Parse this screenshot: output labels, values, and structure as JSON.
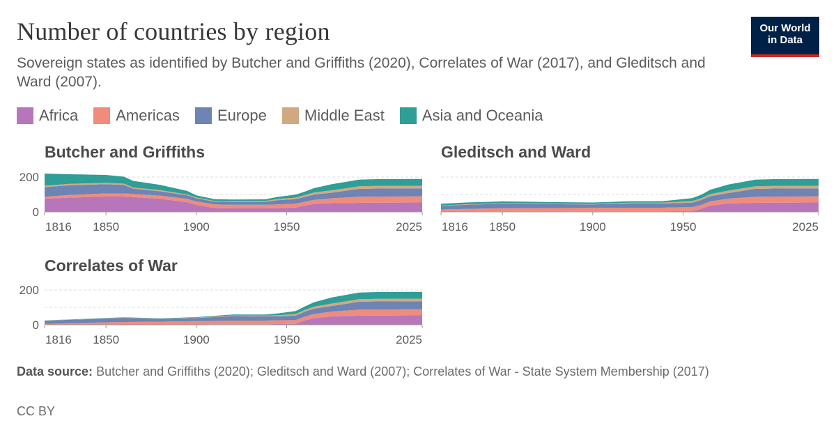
{
  "header": {
    "title": "Number of countries by region",
    "subtitle": "Sovereign states as identified by Butcher and Griffiths (2020), Correlates of War (2017), and Gleditsch and Ward (2007).",
    "logo_line1": "Our World",
    "logo_line2": "in Data"
  },
  "legend": [
    {
      "name": "Africa",
      "color": "#b676b9"
    },
    {
      "name": "Americas",
      "color": "#f08c7c"
    },
    {
      "name": "Europe",
      "color": "#6d84b4"
    },
    {
      "name": "Middle East",
      "color": "#cfa982"
    },
    {
      "name": "Asia and Oceania",
      "color": "#2f9e96"
    }
  ],
  "footer": {
    "source_label": "Data source:",
    "source_text": "Butcher and Griffiths (2020); Gleditsch and Ward (2007); Correlates of War - State System Membership (2017)",
    "license": "CC BY"
  },
  "chart_data": [
    {
      "type": "area",
      "title": "Butcher and Griffiths",
      "xlim": [
        1816,
        2025
      ],
      "ylim": [
        0,
        200
      ],
      "x_ticks": [
        "1816",
        "1850",
        "1900",
        "1950",
        "2025"
      ],
      "y_ticks": [
        "0",
        "200"
      ],
      "grid": true,
      "x": [
        1816,
        1830,
        1850,
        1860,
        1865,
        1880,
        1895,
        1900,
        1910,
        1920,
        1938,
        1945,
        1955,
        1960,
        1965,
        1975,
        1990,
        2000,
        2025
      ],
      "series": [
        {
          "name": "Africa",
          "values": [
            75,
            82,
            88,
            88,
            85,
            75,
            55,
            40,
            22,
            20,
            20,
            21,
            25,
            36,
            45,
            50,
            52,
            53,
            54
          ]
        },
        {
          "name": "Americas",
          "values": [
            12,
            15,
            18,
            18,
            18,
            18,
            20,
            20,
            21,
            21,
            21,
            22,
            22,
            22,
            24,
            28,
            35,
            35,
            35
          ]
        },
        {
          "name": "Europe",
          "values": [
            55,
            56,
            53,
            48,
            30,
            25,
            20,
            18,
            16,
            16,
            16,
            24,
            26,
            28,
            30,
            32,
            45,
            46,
            46
          ]
        },
        {
          "name": "Middle East",
          "values": [
            8,
            8,
            8,
            8,
            7,
            7,
            5,
            5,
            4,
            4,
            5,
            7,
            9,
            10,
            12,
            14,
            15,
            15,
            15
          ]
        },
        {
          "name": "Asia and Oceania",
          "values": [
            70,
            55,
            45,
            40,
            38,
            30,
            20,
            12,
            10,
            10,
            10,
            12,
            17,
            20,
            25,
            35,
            38,
            39,
            39
          ]
        }
      ]
    },
    {
      "type": "area",
      "title": "Gleditsch and Ward",
      "xlim": [
        1816,
        2025
      ],
      "ylim": [
        0,
        200
      ],
      "x_ticks": [
        "1816",
        "1850",
        "1900",
        "1950",
        "2025"
      ],
      "y_ticks": [],
      "grid": true,
      "x": [
        1816,
        1830,
        1850,
        1860,
        1880,
        1900,
        1920,
        1938,
        1945,
        1955,
        1960,
        1965,
        1975,
        1990,
        2000,
        2025
      ],
      "series": [
        {
          "name": "Africa",
          "values": [
            2,
            2,
            3,
            3,
            3,
            3,
            3,
            3,
            4,
            5,
            18,
            36,
            48,
            52,
            53,
            54
          ]
        },
        {
          "name": "Americas",
          "values": [
            12,
            15,
            18,
            18,
            19,
            20,
            21,
            21,
            22,
            22,
            22,
            24,
            28,
            35,
            35,
            35
          ]
        },
        {
          "name": "Europe",
          "values": [
            20,
            24,
            26,
            26,
            22,
            20,
            24,
            24,
            24,
            26,
            28,
            30,
            32,
            45,
            46,
            46
          ]
        },
        {
          "name": "Middle East",
          "values": [
            3,
            3,
            3,
            3,
            3,
            3,
            5,
            5,
            7,
            9,
            10,
            12,
            14,
            15,
            15,
            15
          ]
        },
        {
          "name": "Asia and Oceania",
          "values": [
            10,
            10,
            10,
            9,
            9,
            8,
            8,
            8,
            11,
            17,
            20,
            25,
            35,
            38,
            39,
            39
          ]
        }
      ]
    },
    {
      "type": "area",
      "title": "Correlates of War",
      "xlim": [
        1816,
        2025
      ],
      "ylim": [
        0,
        200
      ],
      "x_ticks": [
        "1816",
        "1850",
        "1900",
        "1950",
        "2025"
      ],
      "y_ticks": [
        "0",
        "200"
      ],
      "grid": true,
      "x": [
        1816,
        1830,
        1850,
        1860,
        1880,
        1900,
        1920,
        1938,
        1945,
        1955,
        1960,
        1965,
        1975,
        1990,
        2000,
        2025
      ],
      "series": [
        {
          "name": "Africa",
          "values": [
            0,
            1,
            2,
            2,
            2,
            2,
            3,
            3,
            4,
            5,
            25,
            38,
            48,
            52,
            53,
            54
          ]
        },
        {
          "name": "Americas",
          "values": [
            5,
            8,
            12,
            14,
            16,
            19,
            21,
            21,
            22,
            22,
            22,
            24,
            28,
            35,
            35,
            35
          ]
        },
        {
          "name": "Europe",
          "values": [
            18,
            20,
            22,
            24,
            16,
            18,
            26,
            24,
            22,
            26,
            28,
            30,
            32,
            45,
            46,
            46
          ]
        },
        {
          "name": "Middle East",
          "values": [
            1,
            1,
            1,
            1,
            1,
            2,
            4,
            5,
            7,
            9,
            10,
            12,
            14,
            15,
            15,
            15
          ]
        },
        {
          "name": "Asia and Oceania",
          "values": [
            1,
            1,
            2,
            2,
            2,
            3,
            5,
            6,
            10,
            17,
            20,
            25,
            35,
            38,
            39,
            39
          ]
        }
      ]
    }
  ]
}
